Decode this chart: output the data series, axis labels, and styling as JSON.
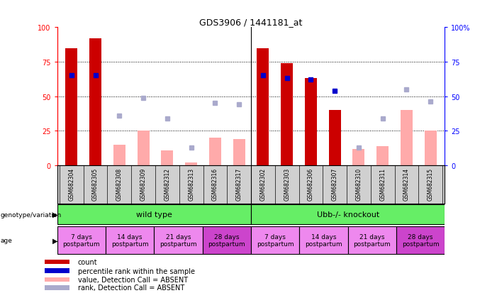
{
  "title": "GDS3906 / 1441181_at",
  "samples": [
    "GSM682304",
    "GSM682305",
    "GSM682308",
    "GSM682309",
    "GSM682312",
    "GSM682313",
    "GSM682316",
    "GSM682317",
    "GSM682302",
    "GSM682303",
    "GSM682306",
    "GSM682307",
    "GSM682310",
    "GSM682311",
    "GSM682314",
    "GSM682315"
  ],
  "count_values": [
    85,
    92,
    null,
    null,
    null,
    null,
    null,
    null,
    85,
    74,
    63,
    40,
    null,
    null,
    null,
    null
  ],
  "percentile_rank": [
    65,
    65,
    null,
    null,
    null,
    null,
    null,
    null,
    65,
    63,
    62,
    54,
    null,
    null,
    null,
    null
  ],
  "absent_value": [
    null,
    null,
    15,
    25,
    11,
    2,
    20,
    19,
    null,
    null,
    null,
    null,
    12,
    14,
    40,
    25
  ],
  "absent_rank": [
    null,
    null,
    36,
    49,
    34,
    13,
    45,
    44,
    null,
    null,
    null,
    null,
    13,
    34,
    55,
    46
  ],
  "color_count": "#cc0000",
  "color_percentile": "#0000cc",
  "color_absent_value": "#ffaaaa",
  "color_absent_rank": "#aaaacc",
  "ylim": [
    0,
    100
  ],
  "yticks": [
    0,
    25,
    50,
    75,
    100
  ],
  "color_geno": "#66ee66",
  "color_age_light": "#ee88ee",
  "color_age_dark": "#cc44cc",
  "age_labels": [
    "7 days\npostpartum",
    "14 days\npostpartum",
    "21 days\npostpartum",
    "28 days\npostpartum",
    "7 days\npostpartum",
    "14 days\npostpartum",
    "21 days\npostpartum",
    "28 days\npostpartum"
  ],
  "age_dark_indices": [
    3,
    7
  ],
  "legend_items": [
    {
      "label": "count",
      "color": "#cc0000"
    },
    {
      "label": "percentile rank within the sample",
      "color": "#0000cc"
    },
    {
      "label": "value, Detection Call = ABSENT",
      "color": "#ffaaaa"
    },
    {
      "label": "rank, Detection Call = ABSENT",
      "color": "#aaaacc"
    }
  ]
}
